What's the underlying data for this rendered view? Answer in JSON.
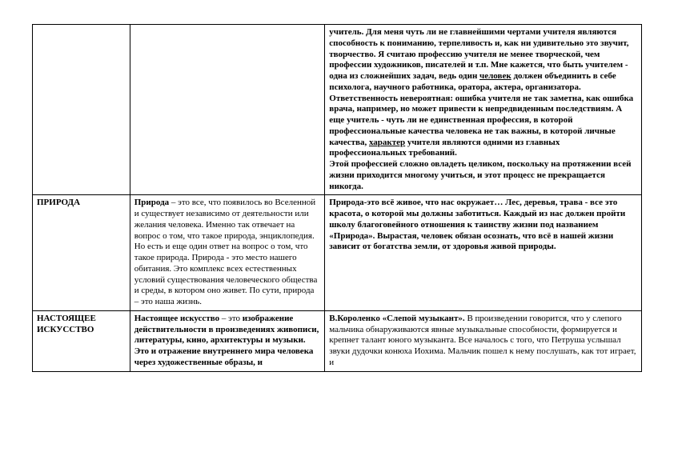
{
  "table": {
    "rows": [
      {
        "col1": "",
        "col2": "",
        "col3": "учитель. Для меня чуть ли не главнейшими чертами учителя являются способность к пониманию, терпеливость и, как ни удивительно это звучит, творчество. Я считаю профессию учителя не менее творческой, чем профессии художников, писателей и т.п. Мне кажется, что быть учителем - одна из сложнейших задач, ведь один <u>человек</u> должен объединить в себе психолога, научного работника, оратора, актера, организатора. Ответственность невероятная: ошибка учителя не так заметна, как ошибка врача, например, но может привести к непредвиденным последствиям. А еще учитель - чуть ли не единственная профессия, в которой профессиональные качества человека не так важны, в которой личные качества, <u>характер</u> учителя являются одними из главных профессиональных требований.<br>Этой профессией сложно овладеть целиком, поскольку на протяжении всей жизни приходится многому учиться, и этот процесс не прекращается никогда.",
        "col3_bold": true
      },
      {
        "col1": "ПРИРОДА",
        "col1_bold": true,
        "col2": "<b>Природа</b> – это все, что появилось во Вселенной и существует независимо от деятельности или желания человека. Именно так отвечает на вопрос о том, что такое природа, энциклопедия.<br>Но есть и еще один ответ на вопрос о том, что такое природа. Природа - это место нашего обитания. Это комплекс всех естественных условий существования человеческого общества и среды, в котором оно живет. По сути, природа – это наша жизнь.",
        "col3": "Природа-это всё живое, что нас окружает… Лес, деревья, трава - все это красота, о которой мы должны заботиться. Каждый из нас должен пройти школу благоговейного отношения к таинству жизни под названием «Природа». Вырастая, человек обязан осознать, что всё в нашей жизни зависит от богатства земли, от здоровья живой природы.",
        "col3_bold": true
      },
      {
        "col1": "НАСТОЯЩЕЕ ИСКУССТВО",
        "col1_bold": true,
        "col2": "<b>Настоящее искусство</b> – это <b>изображение действительности в произведениях живописи, литературы, кино, архитектуры и музыки. Это и отражение внутреннего мира человека через художественные образы, и</b>",
        "col3": "<b>В.Короленко «Слепой музыкант».</b> В произведении говорится, что у слепого мальчика обнаруживаются явные музыкальные способности, формируется и крепнет талант юного музыканта. Все началось с того, что Петруша услышал звуки дудочки конюха Иохима. Мальчик пошел к нему послушать, как тот играет, и"
      }
    ]
  }
}
